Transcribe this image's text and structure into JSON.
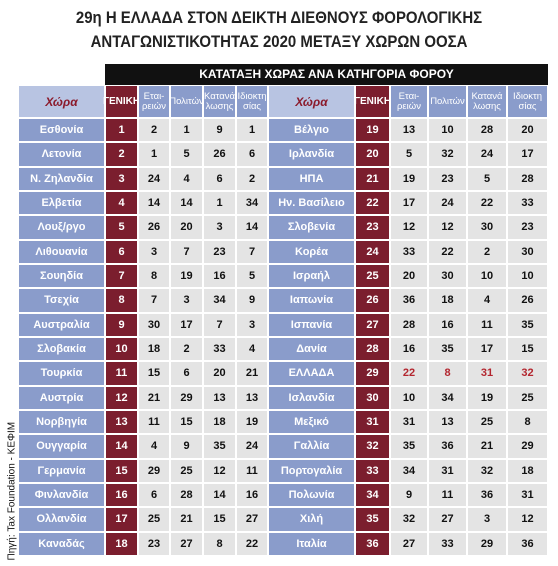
{
  "title": [
    "29η Η ΕΛΛΑΔΑ ΣΤΟΝ ΔΕΙΚΤΗ ΔΙΕΘΝΟΥΣ ΦΟΡΟΛΟΓΙΚΗΣ",
    "ΑΝΤΑΓΩΝΙΣΤΙΚΟΤΗΤΑΣ 2020 ΜΕΤΑΞΥ ΧΩΡΩΝ ΟΟΣΑ"
  ],
  "banner": "ΚΑΤΑΤΑΞΗ ΧΩΡΑΣ ΑΝΑ ΚΑΤΗΓΟΡΙΑ ΦΟΡΟΥ",
  "source": "Πηγή: Tax Foundation - ΚΕΦΙΜ",
  "columns": [
    "Χώρα",
    "ΓΕΝΙΚΗ",
    "Εται-\nρειών",
    "Πολιτών",
    "Κατανά\nλωσης",
    "Ιδιοκτη\nσίας"
  ],
  "left": {
    "rows": [
      [
        "Εσθονία",
        1,
        2,
        1,
        9,
        1
      ],
      [
        "Λετονία",
        2,
        1,
        5,
        26,
        6
      ],
      [
        "Ν. Ζηλανδία",
        3,
        24,
        4,
        6,
        2
      ],
      [
        "Ελβετία",
        4,
        14,
        14,
        1,
        34
      ],
      [
        "Λουξ/ργο",
        5,
        26,
        20,
        3,
        14
      ],
      [
        "Λιθουανία",
        6,
        3,
        7,
        23,
        7
      ],
      [
        "Σουηδία",
        7,
        8,
        19,
        16,
        5
      ],
      [
        "Τσεχία",
        8,
        7,
        3,
        34,
        9
      ],
      [
        "Αυστραλία",
        9,
        30,
        17,
        7,
        3
      ],
      [
        "Σλοβακία",
        10,
        18,
        2,
        33,
        4
      ],
      [
        "Τουρκία",
        11,
        15,
        6,
        20,
        21
      ],
      [
        "Αυστρία",
        12,
        21,
        29,
        13,
        13
      ],
      [
        "Νορβηγία",
        13,
        11,
        15,
        18,
        19
      ],
      [
        "Ουγγαρία",
        14,
        4,
        9,
        35,
        24
      ],
      [
        "Γερμανία",
        15,
        29,
        25,
        12,
        11
      ],
      [
        "Φινλανδία",
        16,
        6,
        28,
        14,
        16
      ],
      [
        "Ολλανδία",
        17,
        25,
        21,
        15,
        27
      ],
      [
        "Καναδάς",
        18,
        23,
        27,
        8,
        22
      ]
    ]
  },
  "right": {
    "rows": [
      [
        "Βέλγιο",
        19,
        13,
        10,
        28,
        20
      ],
      [
        "Ιρλανδία",
        20,
        5,
        32,
        24,
        17
      ],
      [
        "ΗΠΑ",
        21,
        19,
        23,
        5,
        28
      ],
      [
        "Ην. Βασίλειο",
        22,
        17,
        24,
        22,
        33
      ],
      [
        "Σλοβενία",
        23,
        12,
        12,
        30,
        23
      ],
      [
        "Κορέα",
        24,
        33,
        22,
        2,
        30
      ],
      [
        "Ισραήλ",
        25,
        20,
        30,
        10,
        10
      ],
      [
        "Ιαπωνία",
        26,
        36,
        18,
        4,
        26
      ],
      [
        "Ισπανία",
        27,
        28,
        16,
        11,
        35
      ],
      [
        "Δανία",
        28,
        16,
        35,
        17,
        15
      ],
      [
        "ΕΛΛΑΔΑ",
        29,
        22,
        8,
        31,
        32
      ],
      [
        "Ισλανδία",
        30,
        10,
        34,
        19,
        25
      ],
      [
        "Μεξικό",
        31,
        31,
        13,
        25,
        8
      ],
      [
        "Γαλλία",
        32,
        35,
        36,
        21,
        29
      ],
      [
        "Πορτογαλία",
        33,
        34,
        31,
        32,
        18
      ],
      [
        "Πολωνία",
        34,
        9,
        11,
        36,
        31
      ],
      [
        "Χιλή",
        35,
        32,
        27,
        3,
        12
      ],
      [
        "Ιταλία",
        36,
        27,
        33,
        29,
        36
      ]
    ],
    "highlight_row": 10,
    "highlight_color": "#b3262f"
  }
}
